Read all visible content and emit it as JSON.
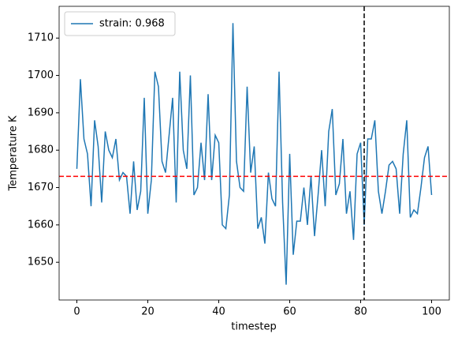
{
  "chart_data": {
    "type": "line",
    "x": [
      0,
      1,
      2,
      3,
      4,
      5,
      6,
      7,
      8,
      9,
      10,
      11,
      12,
      13,
      14,
      15,
      16,
      17,
      18,
      19,
      20,
      21,
      22,
      23,
      24,
      25,
      26,
      27,
      28,
      29,
      30,
      31,
      32,
      33,
      34,
      35,
      36,
      37,
      38,
      39,
      40,
      41,
      42,
      43,
      44,
      45,
      46,
      47,
      48,
      49,
      50,
      51,
      52,
      53,
      54,
      55,
      56,
      57,
      58,
      59,
      60,
      61,
      62,
      63,
      64,
      65,
      66,
      67,
      68,
      69,
      70,
      71,
      72,
      73,
      74,
      75,
      76,
      77,
      78,
      79,
      80,
      81,
      82,
      83,
      84,
      85,
      86,
      87,
      88,
      89,
      90,
      91,
      92,
      93,
      94,
      95,
      96,
      97,
      98,
      99,
      100
    ],
    "series": [
      {
        "name": "strain: 0.968",
        "color": "#1f77b4",
        "values": [
          1675,
          1699,
          1683,
          1679,
          1665,
          1688,
          1681,
          1666,
          1685,
          1680,
          1678,
          1683,
          1672,
          1674,
          1673,
          1663,
          1677,
          1664,
          1669,
          1694,
          1663,
          1672,
          1701,
          1697,
          1677,
          1674,
          1684,
          1694,
          1666,
          1701,
          1680,
          1675,
          1700,
          1668,
          1670,
          1682,
          1672,
          1695,
          1672,
          1684,
          1682,
          1660,
          1659,
          1668,
          1714,
          1677,
          1670,
          1669,
          1697,
          1674,
          1681,
          1659,
          1662,
          1655,
          1674,
          1667,
          1665,
          1701,
          1666,
          1644,
          1679,
          1652,
          1661,
          1661,
          1670,
          1660,
          1673,
          1657,
          1668,
          1680,
          1665,
          1685,
          1691,
          1668,
          1671,
          1683,
          1663,
          1669,
          1656,
          1679,
          1682,
          1660,
          1683,
          1683,
          1688,
          1669,
          1663,
          1669,
          1676,
          1677,
          1675,
          1663,
          1679,
          1688,
          1662,
          1664,
          1663,
          1670,
          1678,
          1681,
          1668
        ]
      }
    ],
    "hline": {
      "value": 1673,
      "color": "#ff0000"
    },
    "vline": {
      "value": 81,
      "color": "#000000"
    },
    "xlabel": "timestep",
    "ylabel": "Temperature K",
    "xlim": [
      -5,
      105
    ],
    "ylim": [
      1639.9,
      1718.5
    ],
    "xticks": [
      0,
      20,
      40,
      60,
      80,
      100
    ],
    "yticks": [
      1650,
      1660,
      1670,
      1680,
      1690,
      1700,
      1710
    ],
    "legend": "upper left"
  }
}
